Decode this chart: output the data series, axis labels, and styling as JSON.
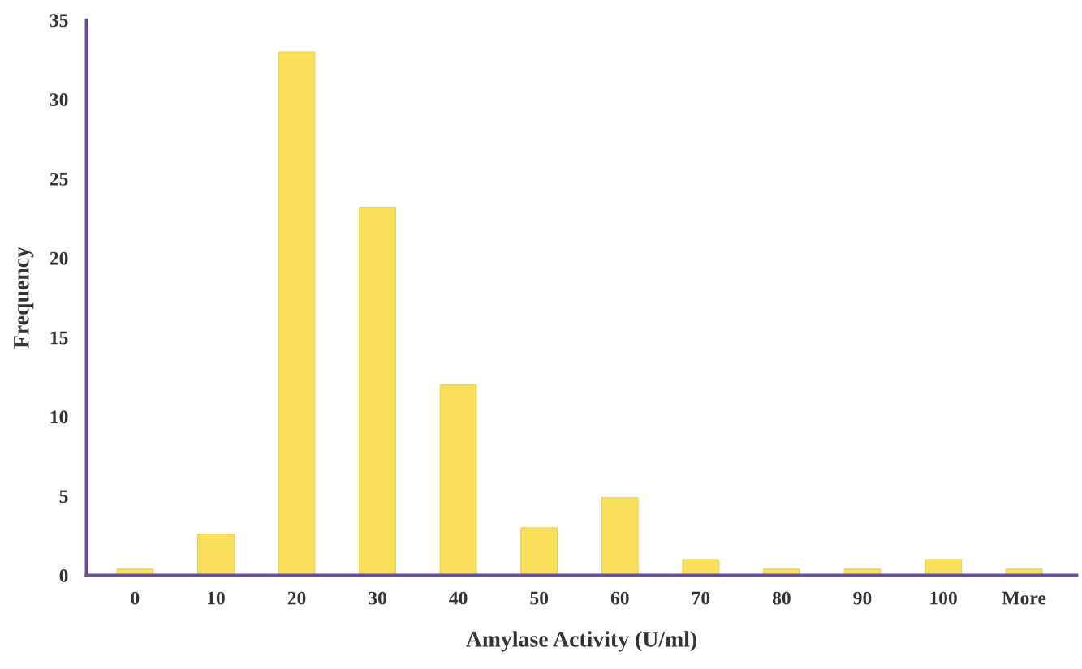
{
  "chart_data": {
    "type": "bar",
    "xlabel": "Amylase Activity (U/ml)",
    "ylabel": "Frequency",
    "categories": [
      "0",
      "10",
      "20",
      "30",
      "40",
      "50",
      "60",
      "70",
      "80",
      "90",
      "100",
      "More"
    ],
    "values": [
      0.4,
      2.6,
      33,
      23.2,
      12,
      3,
      4.9,
      1,
      0.4,
      0.4,
      1,
      0.4
    ],
    "color": "#f9e05a",
    "ylim": [
      0,
      35
    ],
    "yticks": [
      0,
      5,
      10,
      15,
      20,
      25,
      30,
      35
    ],
    "grid": false,
    "legend": false
  }
}
